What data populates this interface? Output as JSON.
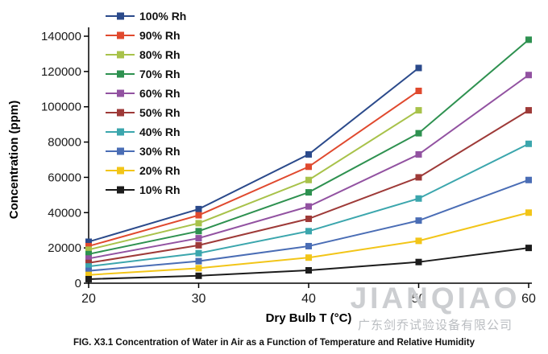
{
  "caption": "FIG. X3.1 Concentration of Water in Air as a Function of Temperature and Relative Humidity",
  "watermark": {
    "brand": "JIANQIAO",
    "company": "广东剑乔试验设备有限公司"
  },
  "chart_data": {
    "type": "line",
    "title": "",
    "xlabel": "Dry Bulb T (°C)",
    "ylabel": "Concentration (ppm)",
    "xlim": [
      20,
      60
    ],
    "ylim": [
      0,
      140000
    ],
    "x_ticks": [
      20,
      30,
      40,
      50,
      60
    ],
    "y_ticks": [
      0,
      20000,
      40000,
      60000,
      80000,
      100000,
      120000,
      140000
    ],
    "grid": false,
    "legend_position": "top-left",
    "marker": "square",
    "series": [
      {
        "name": "100% Rh",
        "color": "#2b4a8b",
        "x": [
          20,
          30,
          40,
          50
        ],
        "values": [
          23500,
          42000,
          73000,
          122000
        ]
      },
      {
        "name": "90% Rh",
        "color": "#e0492e",
        "x": [
          20,
          30,
          40,
          50
        ],
        "values": [
          21000,
          38500,
          66000,
          109000
        ]
      },
      {
        "name": "80% Rh",
        "color": "#a8c24a",
        "x": [
          20,
          30,
          40,
          50
        ],
        "values": [
          19000,
          34000,
          58500,
          98000
        ]
      },
      {
        "name": "70% Rh",
        "color": "#2e9150",
        "x": [
          20,
          30,
          40,
          50,
          60
        ],
        "values": [
          16500,
          29500,
          51500,
          85000,
          138000
        ]
      },
      {
        "name": "60% Rh",
        "color": "#9252a1",
        "x": [
          20,
          30,
          40,
          50,
          60
        ],
        "values": [
          14000,
          25500,
          43500,
          73000,
          118000
        ]
      },
      {
        "name": "50% Rh",
        "color": "#9e3a38",
        "x": [
          20,
          30,
          40,
          50,
          60
        ],
        "values": [
          11500,
          21500,
          36500,
          60000,
          98000
        ]
      },
      {
        "name": "40% Rh",
        "color": "#3ba6ad",
        "x": [
          20,
          30,
          40,
          50,
          60
        ],
        "values": [
          9500,
          17000,
          29500,
          48000,
          79000
        ]
      },
      {
        "name": "30% Rh",
        "color": "#4a6db5",
        "x": [
          20,
          30,
          40,
          50,
          60
        ],
        "values": [
          7000,
          12500,
          21000,
          35500,
          58500
        ]
      },
      {
        "name": "20% Rh",
        "color": "#f2c518",
        "x": [
          20,
          30,
          40,
          50,
          60
        ],
        "values": [
          4700,
          8500,
          14500,
          24000,
          40000
        ]
      },
      {
        "name": "10% Rh",
        "color": "#1c1c1c",
        "x": [
          20,
          30,
          40,
          50,
          60
        ],
        "values": [
          2300,
          4200,
          7300,
          12000,
          20000
        ]
      }
    ]
  }
}
